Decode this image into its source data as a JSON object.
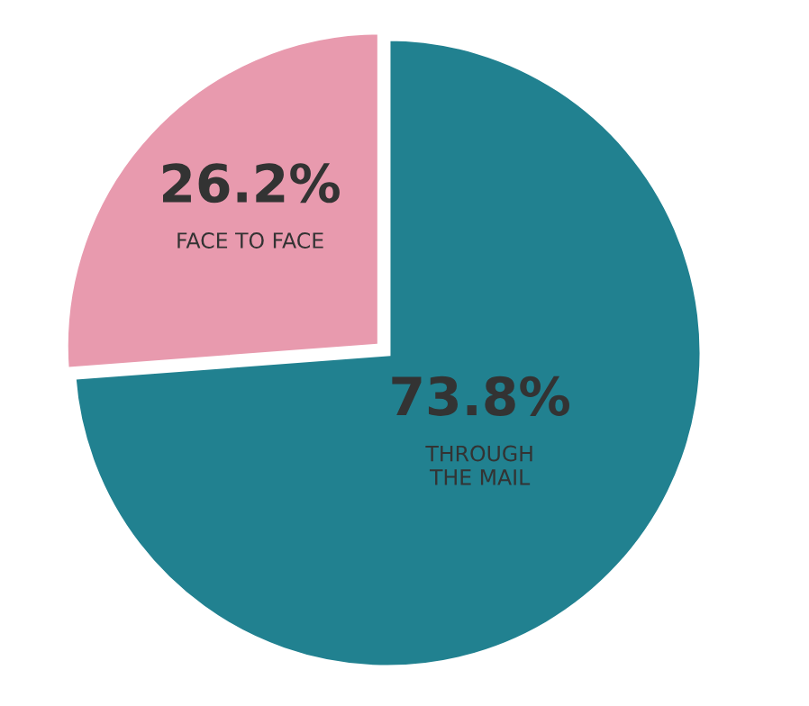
{
  "chart_data": {
    "type": "pie",
    "categories": [
      "THROUGH\nTHE MAIL",
      "FACE TO FACE"
    ],
    "values": [
      73.8,
      26.2
    ],
    "colors": [
      "#218190",
      "#e89aae"
    ],
    "value_labels": [
      "73.8%",
      "26.2%"
    ],
    "legend": false
  }
}
